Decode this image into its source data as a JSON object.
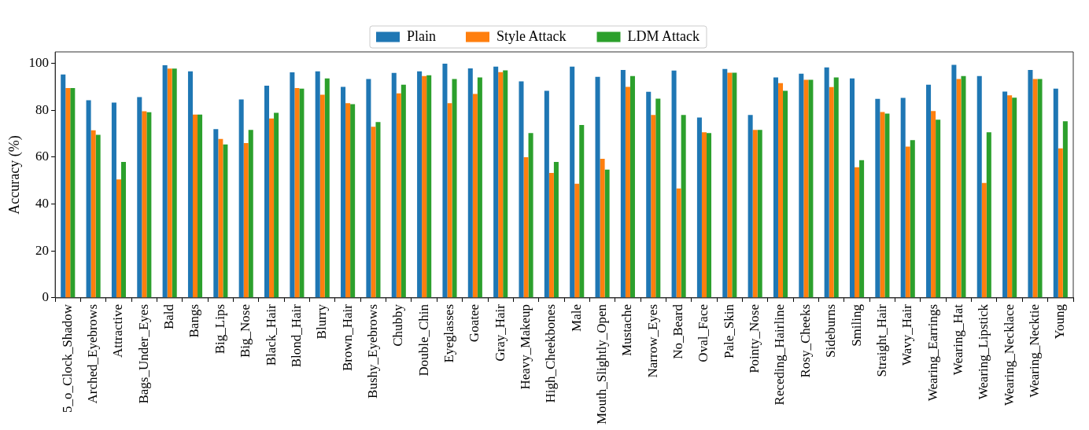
{
  "chart_data": {
    "type": "bar",
    "ylabel": "Accuracy (%)",
    "categories": [
      "5_o_Clock_Shadow",
      "Arched_Eyebrows",
      "Attractive",
      "Bags_Under_Eyes",
      "Bald",
      "Bangs",
      "Big_Lips",
      "Big_Nose",
      "Black_Hair",
      "Blond_Hair",
      "Blurry",
      "Brown_Hair",
      "Bushy_Eyebrows",
      "Chubby",
      "Double_Chin",
      "Eyeglasses",
      "Goatee",
      "Gray_Hair",
      "Heavy_Makeup",
      "High_Cheekbones",
      "Male",
      "Mouth_Slightly_Open",
      "Mustache",
      "Narrow_Eyes",
      "No_Beard",
      "Oval_Face",
      "Pale_Skin",
      "Pointy_Nose",
      "Receding_Hairline",
      "Rosy_Cheeks",
      "Sideburns",
      "Smiling",
      "Straight_Hair",
      "Wavy_Hair",
      "Wearing_Earrings",
      "Wearing_Hat",
      "Wearing_Lipstick",
      "Wearing_Necklace",
      "Wearing_Necktie",
      "Young"
    ],
    "series": [
      {
        "name": "Plain",
        "color": "#1f77b4",
        "values": [
          95.3,
          84.3,
          83.3,
          85.6,
          99.2,
          96.6,
          72,
          84.6,
          90.5,
          96.2,
          96.6,
          90,
          93.3,
          95.9,
          96.6,
          99.9,
          97.9,
          98.6,
          92.3,
          88.3,
          98.6,
          94.3,
          97.2,
          87.9,
          96.9,
          76.9,
          97.6,
          78,
          94,
          95.6,
          98.3,
          93.6,
          84.9,
          85.3,
          90.9,
          99.4,
          94.6,
          88,
          97.2,
          89.2
        ]
      },
      {
        "name": "Style Attack",
        "color": "#ff7f0e",
        "values": [
          89.5,
          71.5,
          50.5,
          79.6,
          97.8,
          78.2,
          67.8,
          66,
          76.5,
          89.5,
          86.6,
          83,
          73,
          87.2,
          94.6,
          83,
          87,
          96.3,
          60,
          53.3,
          48.7,
          59.3,
          90,
          78,
          46.7,
          70.6,
          96,
          71.6,
          91.6,
          93,
          89.9,
          55.7,
          79.3,
          64.5,
          79.7,
          93.3,
          49,
          86.4,
          93.3,
          63.8
        ]
      },
      {
        "name": "LDM Attack",
        "color": "#2ca02c",
        "values": [
          89.5,
          69.5,
          58,
          79.2,
          97.8,
          78.2,
          65.4,
          71.6,
          78.9,
          89.2,
          93.6,
          82.6,
          75,
          90.9,
          94.9,
          93.3,
          94,
          97,
          70.3,
          58,
          73.7,
          54.7,
          94.6,
          85,
          78,
          70.3,
          96,
          71.6,
          88.3,
          93,
          94,
          58.7,
          78.6,
          67.3,
          76,
          94.6,
          70.6,
          85.4,
          93.3,
          75.3
        ]
      }
    ],
    "ylim": [
      0,
      104.9
    ],
    "yticks": [
      0,
      20,
      40,
      60,
      80,
      100
    ],
    "legend": "top",
    "grid": false
  }
}
